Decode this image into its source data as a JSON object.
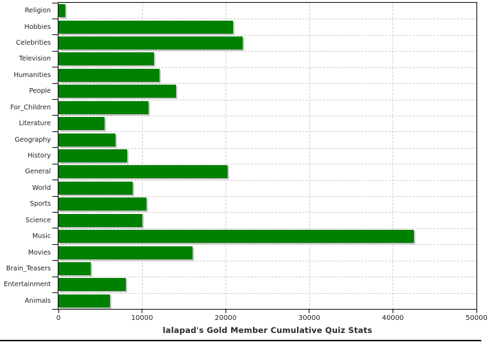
{
  "chart_data": {
    "type": "bar",
    "orientation": "horizontal",
    "title": "lalapad's Gold Member Cumulative Quiz Stats",
    "categories": [
      "Religion",
      "Hobbies",
      "Celebrities",
      "Television",
      "Humanities",
      "People",
      "For_Children",
      "Literature",
      "Geography",
      "History",
      "General",
      "World",
      "Sports",
      "Science",
      "Music",
      "Movies",
      "Brain_Teasers",
      "Entertainment",
      "Animals"
    ],
    "values": [
      800,
      20900,
      22000,
      11400,
      12100,
      14100,
      10800,
      5500,
      6800,
      8200,
      20200,
      8900,
      10500,
      10000,
      42500,
      16000,
      3900,
      8100,
      6200
    ],
    "xlim": [
      0,
      50000
    ],
    "x_ticks": [
      0,
      10000,
      20000,
      30000,
      40000,
      50000
    ],
    "x_tick_labels": [
      "0",
      "10000",
      "20000",
      "30000",
      "40000",
      "50000"
    ],
    "bar_color": "#008000",
    "bar_shadow_color": "#c6c6c6",
    "grid_color": "#cccccc",
    "axis_color": "#000000",
    "grid": true,
    "legend_position": "none"
  }
}
